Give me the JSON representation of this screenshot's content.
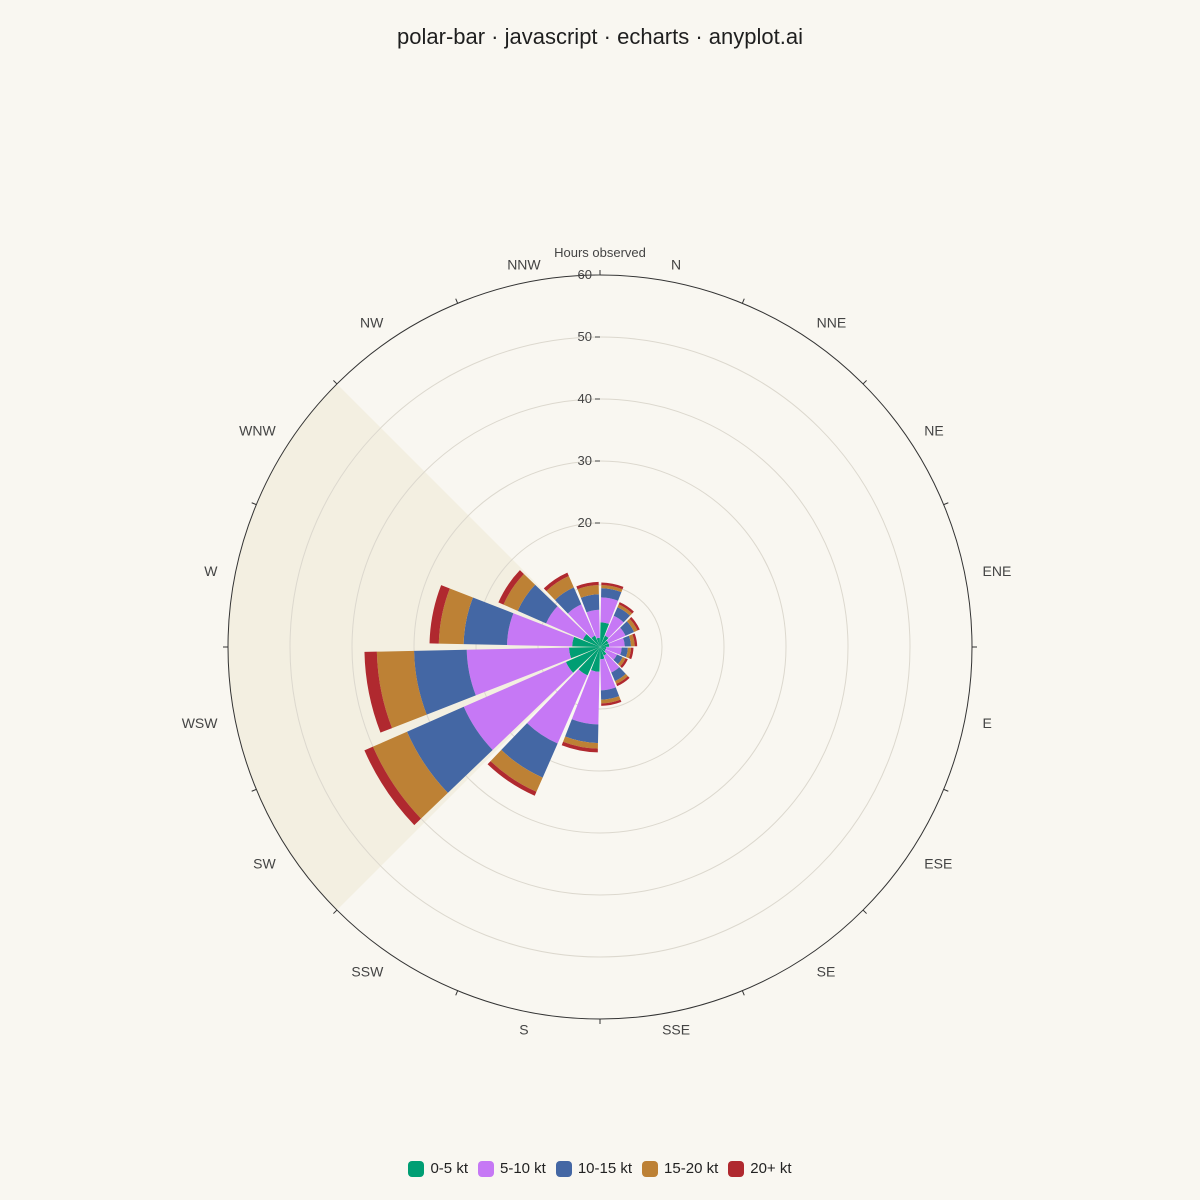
{
  "title": "polar-bar · javascript · echarts · anyplot.ai",
  "chart_data": {
    "type": "bar",
    "subtype": "stacked-polar-windrose",
    "radial_axis_title": "Hours observed",
    "radial_range": [
      0,
      60
    ],
    "radial_ticks": [
      "20",
      "30",
      "40",
      "50",
      "60"
    ],
    "highlighted_sector": [
      "WNW",
      "SW"
    ],
    "categories": [
      "N",
      "NNE",
      "NE",
      "ENE",
      "E",
      "ESE",
      "SE",
      "SSE",
      "S",
      "SSW",
      "SW",
      "WSW",
      "W",
      "WNW",
      "NW",
      "NNW"
    ],
    "series": [
      {
        "name": "0-5 kt",
        "color": "#009e73",
        "values": [
          4.0,
          2.0,
          1.5,
          1.5,
          1.0,
          1.0,
          1.5,
          2.0,
          4.0,
          5.0,
          6.0,
          5.0,
          4.5,
          3.0,
          2.0,
          1.5
        ]
      },
      {
        "name": "5-10 kt",
        "color": "#c678f5",
        "values": [
          4.0,
          3.5,
          3.0,
          2.5,
          2.5,
          2.0,
          3.0,
          5.0,
          8.5,
          12.0,
          18.0,
          16.5,
          10.5,
          6.5,
          5.5,
          4.5
        ]
      },
      {
        "name": "10-15 kt",
        "color": "#4467a4",
        "values": [
          1.5,
          1.5,
          1.5,
          1.0,
          1.0,
          1.0,
          1.5,
          1.5,
          3.0,
          6.0,
          10.0,
          8.5,
          7.0,
          5.0,
          3.0,
          2.5
        ]
      },
      {
        "name": "15-20 kt",
        "color": "#bd8135",
        "values": [
          0.5,
          0.5,
          0.6,
          0.6,
          0.5,
          0.5,
          0.5,
          0.6,
          0.9,
          2.5,
          6.0,
          6.0,
          4.0,
          2.5,
          2.0,
          1.5
        ]
      },
      {
        "name": "20+ kt",
        "color": "#b0292f",
        "values": [
          0.4,
          0.4,
          0.4,
          0.4,
          0.4,
          0.4,
          0.4,
          0.4,
          0.6,
          0.7,
          1.5,
          2.0,
          1.5,
          0.9,
          0.6,
          0.5
        ]
      }
    ],
    "legend_position": "bottom"
  }
}
